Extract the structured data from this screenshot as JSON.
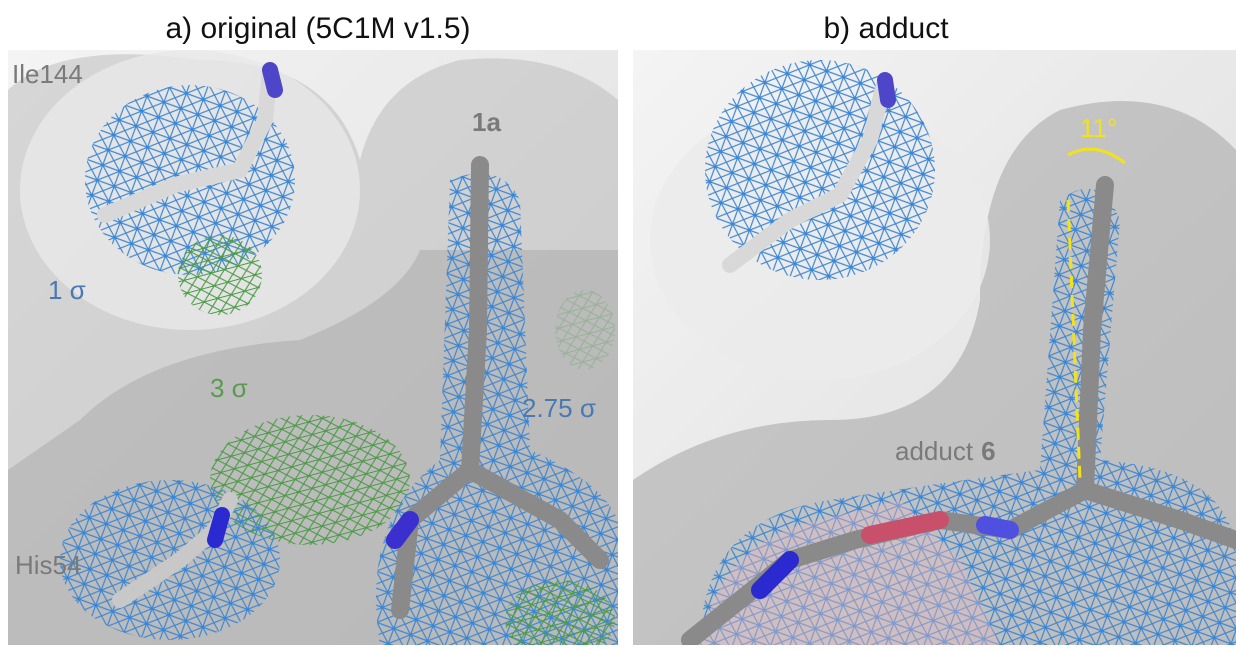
{
  "panels": [
    {
      "title": "a) original (5C1M v1.5)",
      "labels": [
        "Ile144",
        "1a",
        "1 σ",
        "3 σ",
        "2.75 σ",
        "His54"
      ]
    },
    {
      "title": "b) adduct",
      "labels": [
        "11°",
        "adduct",
        "6"
      ]
    }
  ]
}
